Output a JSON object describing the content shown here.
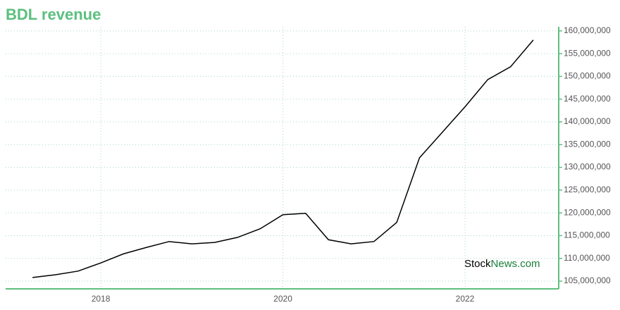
{
  "chart_data": {
    "type": "line",
    "title": "BDL revenue",
    "x": [
      2017.25,
      2017.5,
      2017.75,
      2018,
      2018.25,
      2018.5,
      2018.75,
      2019,
      2019.25,
      2019.5,
      2019.75,
      2020,
      2020.25,
      2020.5,
      2020.75,
      2021,
      2021.25,
      2021.5,
      2021.75,
      2022,
      2022.25,
      2022.5,
      2022.75
    ],
    "series": [
      {
        "color": "#000000",
        "values": [
          105800000,
          106400000,
          107200000,
          109000000,
          111000000,
          112400000,
          113700000,
          113200000,
          113500000,
          114600000,
          116500000,
          119600000,
          119900000,
          114100000,
          113200000,
          113700000,
          117900000,
          132100000,
          137700000,
          143300000,
          149300000,
          152100000,
          158000000
        ]
      }
    ],
    "xlim": [
      2016.955,
      2023.029
    ],
    "xticks": [
      2018,
      2020,
      2022
    ],
    "ylim": [
      103300000,
      160900000
    ],
    "yticks": [
      {
        "value": 105000000,
        "label": "105,000,000"
      },
      {
        "value": 110000000,
        "label": "110,000,000"
      },
      {
        "value": 115000000,
        "label": "115,000,000"
      },
      {
        "value": 120000000,
        "label": "120,000,000"
      },
      {
        "value": 125000000,
        "label": "125,000,000"
      },
      {
        "value": 130000000,
        "label": "130,000,000"
      },
      {
        "value": 135000000,
        "label": "135,000,000"
      },
      {
        "value": 140000000,
        "label": "140,000,000"
      },
      {
        "value": 145000000,
        "label": "145,000,000"
      },
      {
        "value": 150000000,
        "label": "150,000,000"
      },
      {
        "value": 155000000,
        "label": "155,000,000"
      },
      {
        "value": 160000000,
        "label": "160,000,000"
      }
    ],
    "grid": true,
    "axis_color": "#5cbf7f",
    "watermark": [
      "Stock",
      "News.com"
    ]
  }
}
